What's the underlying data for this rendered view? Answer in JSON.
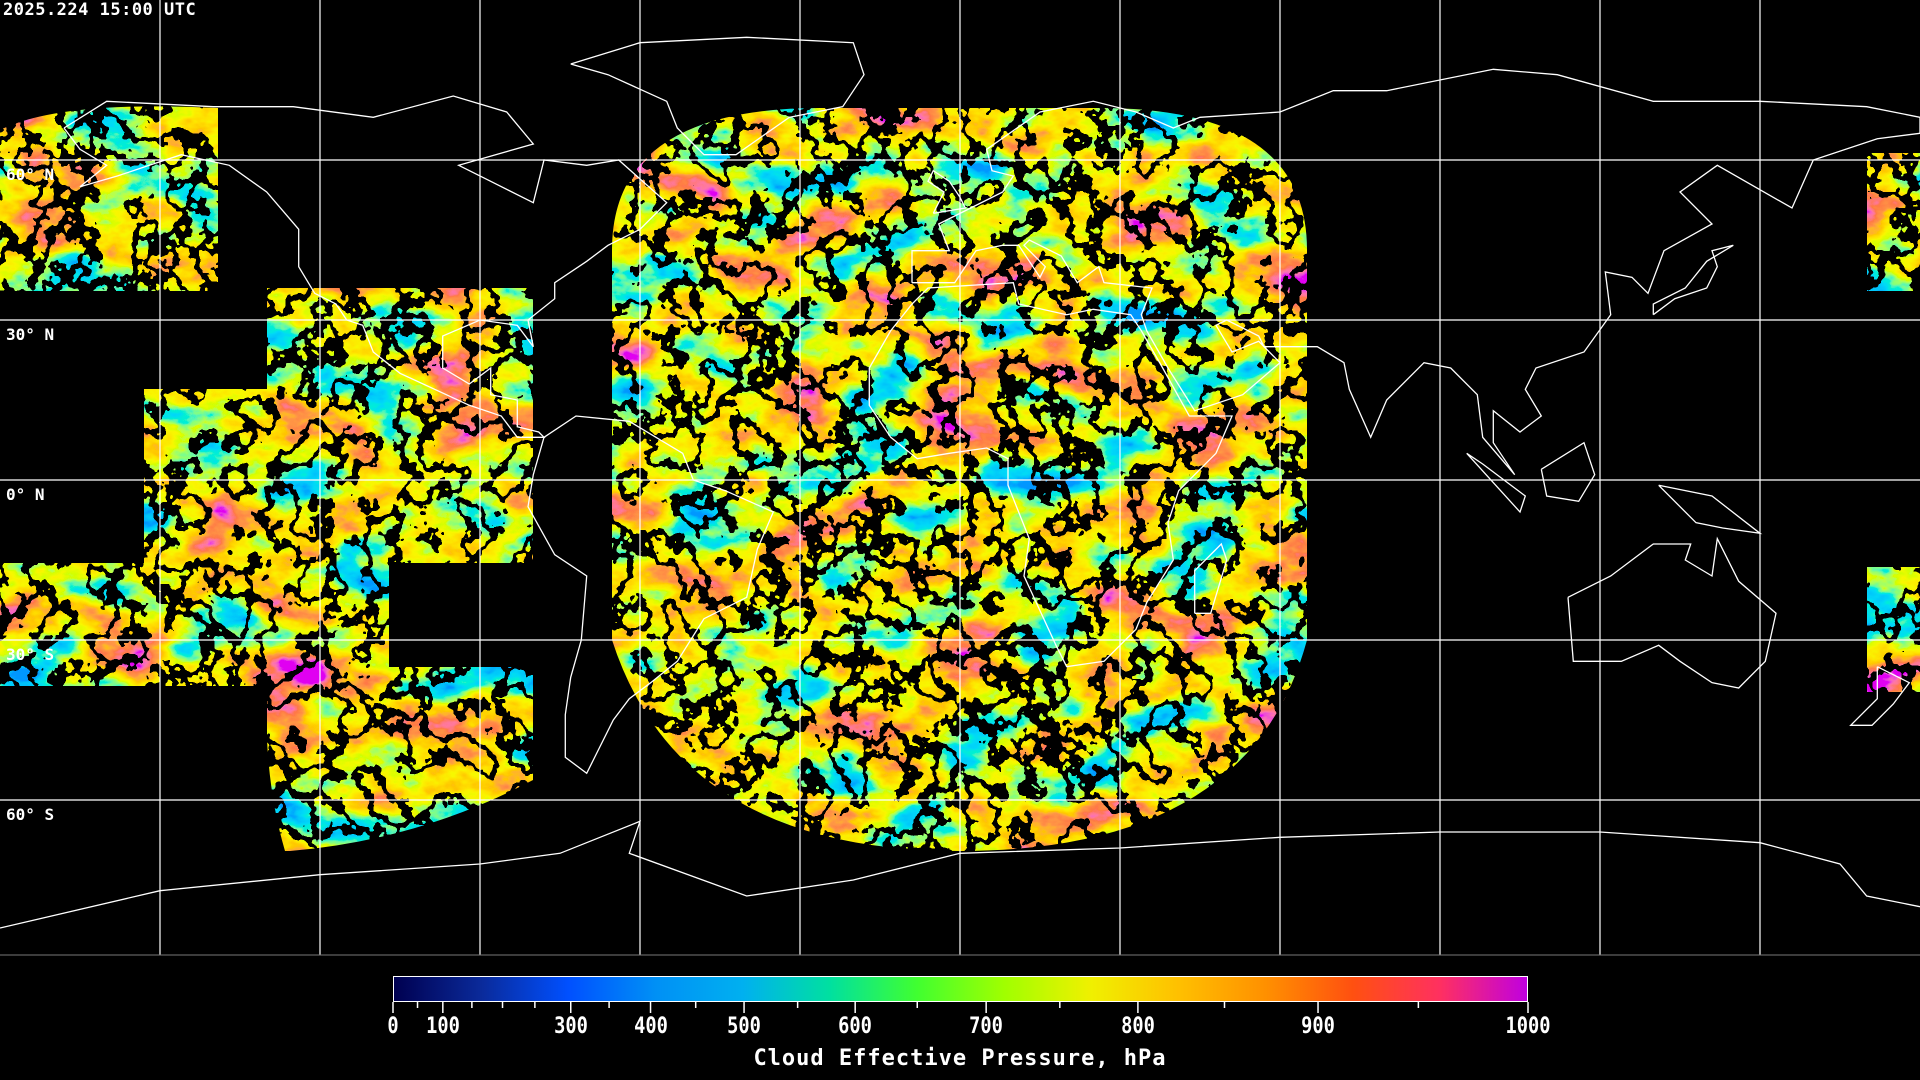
{
  "timestamp": "2025.224 15:00 UTC",
  "map": {
    "projection": "equirectangular",
    "center_longitude": 0,
    "grid_spacing_degrees": 30,
    "background": "#000000",
    "coastline_color": "#ffffff",
    "latitude_labels": [
      "60° N",
      "30° N",
      "0° N",
      "30° S",
      "60° S"
    ]
  },
  "colorbar": {
    "title": "Cloud Effective Pressure, hPa",
    "range": [
      0,
      1000
    ],
    "tick_labels": [
      {
        "value": 0,
        "label": "0"
      },
      {
        "value": 100,
        "label": "100"
      },
      {
        "value": 300,
        "label": "300"
      },
      {
        "value": 400,
        "label": "400"
      },
      {
        "value": 500,
        "label": "500"
      },
      {
        "value": 600,
        "label": "600"
      },
      {
        "value": 700,
        "label": "700"
      },
      {
        "value": 800,
        "label": "800"
      },
      {
        "value": 900,
        "label": "900"
      },
      {
        "value": 1000,
        "label": "1000"
      }
    ],
    "minor_ticks": [
      50,
      150,
      200,
      250,
      350,
      450,
      550,
      650,
      750,
      850,
      950
    ],
    "colors": [
      "#000050",
      "#0a2a9a",
      "#0050ff",
      "#0090f5",
      "#00b0f0",
      "#00e0a0",
      "#40ff30",
      "#a0ff00",
      "#f0f000",
      "#ffc000",
      "#ff9000",
      "#ff5010",
      "#ff3060",
      "#c000e0"
    ]
  }
}
